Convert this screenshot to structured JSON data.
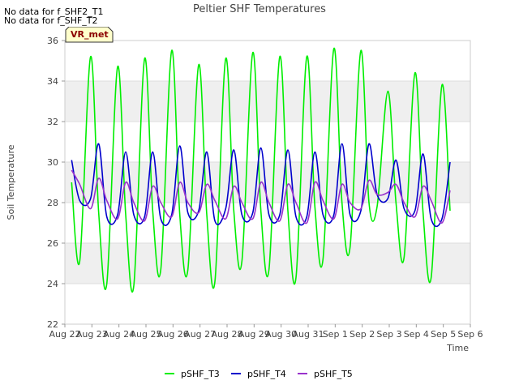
{
  "no_data": [
    "No data for f_SHF2_T1",
    "No data for f_SHF_T2"
  ],
  "badge": "VR_met",
  "chart_data": {
    "type": "line",
    "title": "Peltier SHF Temperatures",
    "xlabel": "Time",
    "ylabel": "Soil Temperature",
    "xlim": [
      0,
      15
    ],
    "ylim": [
      22,
      36
    ],
    "x_tick_labels": [
      "Aug 22",
      "Aug 23",
      "Aug 24",
      "Aug 25",
      "Aug 26",
      "Aug 27",
      "Aug 28",
      "Aug 29",
      "Aug 30",
      "Aug 31",
      "Sep 1",
      "Sep 2",
      "Sep 3",
      "Sep 4",
      "Sep 5",
      "Sep 6"
    ],
    "y_ticks": [
      22,
      24,
      26,
      28,
      30,
      32,
      34,
      36
    ],
    "x_note": "x values are days since Aug 22 00:00",
    "series": [
      {
        "name": "pSHF_T3",
        "color": "#00ee00",
        "x": [
          0.25,
          0.55,
          0.95,
          1.25,
          1.55,
          1.95,
          2.25,
          2.55,
          2.95,
          3.25,
          3.55,
          3.95,
          4.25,
          4.55,
          4.95,
          5.25,
          5.55,
          5.95,
          6.25,
          6.55,
          6.95,
          7.25,
          7.55,
          7.95,
          8.25,
          8.55,
          8.95,
          9.25,
          9.55,
          9.95,
          10.25,
          10.55,
          10.95,
          11.25,
          11.55,
          11.95,
          12.25,
          12.55,
          12.95,
          13.25,
          13.55,
          13.95,
          14.25
        ],
        "y": [
          29.0,
          25.1,
          35.2,
          27.5,
          24.0,
          34.7,
          27.4,
          23.9,
          35.1,
          27.6,
          24.7,
          35.5,
          27.4,
          24.7,
          34.8,
          27.4,
          24.1,
          35.1,
          27.6,
          25.1,
          35.4,
          27.6,
          24.7,
          35.2,
          27.6,
          24.3,
          35.2,
          27.8,
          25.2,
          35.6,
          28.0,
          25.8,
          35.5,
          28.0,
          27.8,
          33.5,
          28.0,
          25.3,
          34.4,
          27.5,
          24.3,
          33.8,
          27.6
        ]
      },
      {
        "name": "pSHF_T4",
        "color": "#0000cc",
        "x": [
          0.25,
          0.55,
          0.95,
          1.25,
          1.55,
          1.95,
          2.25,
          2.55,
          2.95,
          3.25,
          3.55,
          3.95,
          4.25,
          4.55,
          4.95,
          5.25,
          5.55,
          5.95,
          6.25,
          6.55,
          6.95,
          7.25,
          7.55,
          7.95,
          8.25,
          8.55,
          8.95,
          9.25,
          9.55,
          9.95,
          10.25,
          10.55,
          10.95,
          11.25,
          11.55,
          11.95,
          12.25,
          12.55,
          12.95,
          13.25,
          13.55,
          13.95,
          14.25
        ],
        "y": [
          30.1,
          28.1,
          28.2,
          30.9,
          27.3,
          27.4,
          30.5,
          27.4,
          27.3,
          30.5,
          27.2,
          27.4,
          30.8,
          27.5,
          27.6,
          30.5,
          27.1,
          27.7,
          30.6,
          27.4,
          27.5,
          30.7,
          27.4,
          27.4,
          30.6,
          27.3,
          27.3,
          30.5,
          27.4,
          27.4,
          30.9,
          27.4,
          27.6,
          30.9,
          28.4,
          28.2,
          30.1,
          27.7,
          27.6,
          30.4,
          27.2,
          27.2,
          30.0
        ]
      },
      {
        "name": "pSHF_T5",
        "color": "#9933cc",
        "x": [
          0.25,
          0.55,
          0.95,
          1.25,
          1.55,
          1.95,
          2.25,
          2.55,
          2.95,
          3.25,
          3.55,
          3.95,
          4.25,
          4.55,
          4.95,
          5.25,
          5.55,
          5.95,
          6.25,
          6.55,
          6.95,
          7.25,
          7.55,
          7.95,
          8.25,
          8.55,
          8.95,
          9.25,
          9.55,
          9.95,
          10.25,
          10.55,
          10.95,
          11.25,
          11.55,
          11.95,
          12.25,
          12.55,
          12.95,
          13.25,
          13.55,
          13.95,
          14.25
        ],
        "y": [
          29.6,
          28.9,
          27.7,
          29.2,
          28.1,
          27.2,
          29.0,
          28.0,
          27.1,
          28.8,
          28.0,
          27.3,
          29.0,
          28.0,
          27.5,
          28.9,
          28.1,
          27.2,
          28.8,
          28.0,
          27.2,
          29.0,
          28.0,
          27.1,
          28.9,
          28.0,
          27.0,
          29.0,
          28.1,
          27.2,
          28.9,
          28.0,
          27.7,
          29.1,
          28.4,
          28.5,
          28.9,
          28.0,
          27.3,
          28.8,
          28.1,
          27.0,
          28.6
        ]
      }
    ],
    "legend_position": "bottom-center"
  }
}
